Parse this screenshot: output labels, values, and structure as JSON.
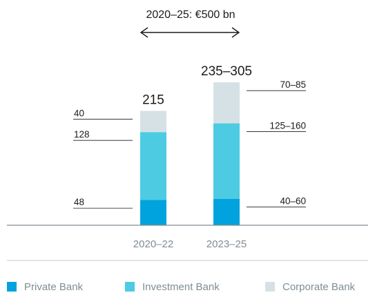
{
  "chart_data": {
    "type": "bar",
    "stacked": true,
    "title": "2020–25: €500 bn",
    "categories": [
      "2020–22",
      "2023–25"
    ],
    "totals": [
      "215",
      "235–305"
    ],
    "series": [
      {
        "name": "Private Bank",
        "color": "#00a3dd",
        "values": [
          48,
          50
        ],
        "labels": [
          "48",
          "40–60"
        ]
      },
      {
        "name": "Investment Bank",
        "color": "#4dcbe3",
        "values": [
          128,
          142.5
        ],
        "labels": [
          "128",
          "125–160"
        ]
      },
      {
        "name": "Corporate Bank",
        "color": "#d6e1e5",
        "values": [
          40,
          77.5
        ],
        "labels": [
          "40",
          "70–85"
        ]
      }
    ],
    "legend": "bottom",
    "grid": false,
    "axis_color": "#7f8c93",
    "text_color": "#1a1a1a",
    "muted_text_color": "#7f8c93",
    "arrow_icon": "double-headed-arrow-icon"
  }
}
